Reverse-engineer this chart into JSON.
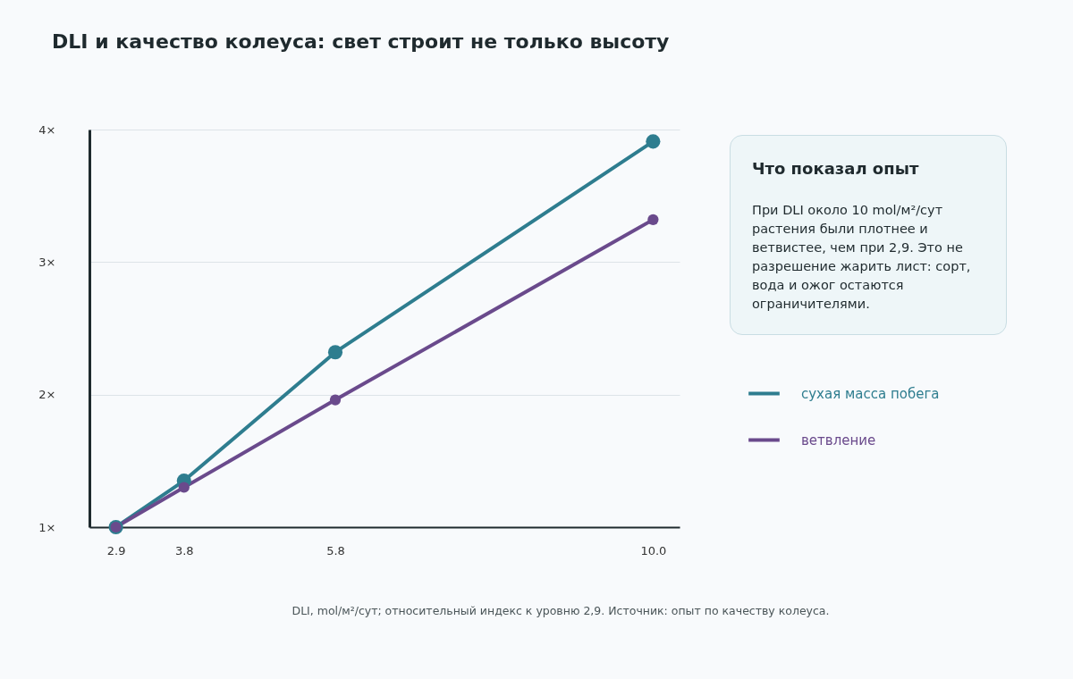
{
  "chart_data": {
    "type": "line",
    "title": "DLI и качество колеуса: свет строит не только высоту",
    "x": [
      2.9,
      3.8,
      5.8,
      10.0
    ],
    "series": [
      {
        "name": "сухая масса побега",
        "color": "#2e7d8f",
        "values": [
          1,
          1.35,
          2.32,
          3.91
        ]
      },
      {
        "name": "ветвление",
        "color": "#6a4a8c",
        "values": [
          1,
          1.3,
          1.96,
          3.32
        ]
      }
    ],
    "xlim": [
      2.55,
      10.35
    ],
    "xticks": [
      2.9,
      3.8,
      5.8,
      {
        "value": 10,
        "label": "10.0"
      }
    ],
    "ylim": [
      1,
      4
    ],
    "yticks": [
      {
        "value": 1,
        "label": "1×"
      },
      {
        "value": 2,
        "label": "2×"
      },
      {
        "value": 3,
        "label": "3×"
      },
      {
        "value": 4,
        "label": "4×"
      }
    ],
    "grid": "y",
    "legend": "right",
    "marker": "circle",
    "line_style": "solid",
    "annotations": [
      "Что показал опыт",
      "При DLI около 10 mol/м²/сут растения были плотнее и ветвистее, чем при 2,9. Это не разрешение жарить лист: сорт, вода и ожог остаются ограничителями.",
      "DLI, mol/м²/сут; относительный индекс к уровню 2,9. Источник: опыт по качеству колеуса."
    ]
  }
}
